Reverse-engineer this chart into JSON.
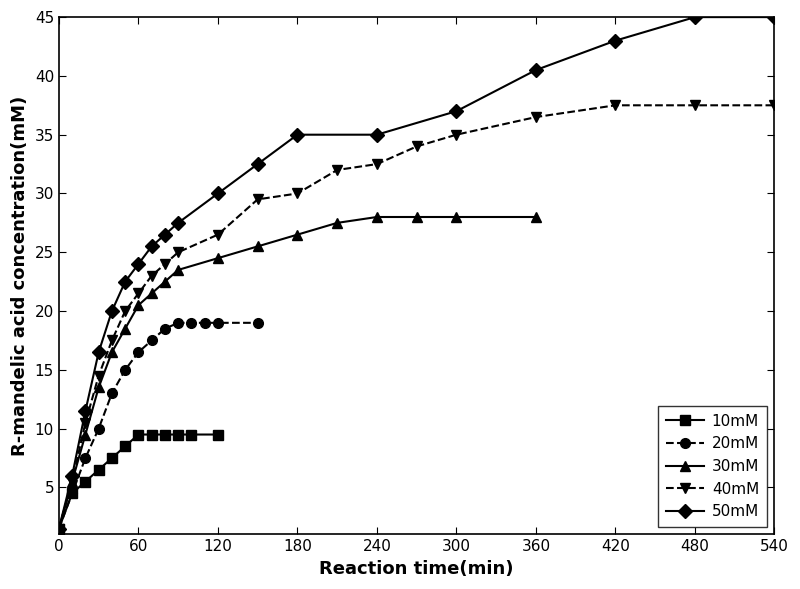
{
  "series": [
    {
      "label": "10mM",
      "marker": "s",
      "linestyle": "-",
      "x": [
        0,
        10,
        20,
        30,
        40,
        50,
        60,
        70,
        80,
        90,
        100,
        120
      ],
      "y": [
        1.5,
        4.5,
        5.5,
        6.5,
        7.5,
        8.5,
        9.5,
        9.5,
        9.5,
        9.5,
        9.5,
        9.5
      ]
    },
    {
      "label": "20mM",
      "marker": "o",
      "linestyle": "--",
      "x": [
        0,
        10,
        20,
        30,
        40,
        50,
        60,
        70,
        80,
        90,
        100,
        110,
        120,
        150
      ],
      "y": [
        1.5,
        4.5,
        7.5,
        10.0,
        13.0,
        15.0,
        16.5,
        17.5,
        18.5,
        19.0,
        19.0,
        19.0,
        19.0,
        19.0
      ]
    },
    {
      "label": "30mM",
      "marker": "^",
      "linestyle": "-",
      "x": [
        0,
        10,
        20,
        30,
        40,
        50,
        60,
        70,
        80,
        90,
        120,
        150,
        180,
        210,
        240,
        270,
        300,
        360
      ],
      "y": [
        1.5,
        5.5,
        9.5,
        13.5,
        16.5,
        18.5,
        20.5,
        21.5,
        22.5,
        23.5,
        24.5,
        25.5,
        26.5,
        27.5,
        28.0,
        28.0,
        28.0,
        28.0
      ]
    },
    {
      "label": "40mM",
      "marker": "v",
      "linestyle": "--",
      "x": [
        0,
        10,
        20,
        30,
        40,
        50,
        60,
        70,
        80,
        90,
        120,
        150,
        180,
        210,
        240,
        270,
        300,
        360,
        420,
        480,
        540
      ],
      "y": [
        1.5,
        5.5,
        10.5,
        14.5,
        17.5,
        20.0,
        21.5,
        23.0,
        24.0,
        25.0,
        26.5,
        29.5,
        30.0,
        32.0,
        32.5,
        34.0,
        35.0,
        36.5,
        37.5,
        37.5,
        37.5
      ]
    },
    {
      "label": "50mM",
      "marker": "D",
      "linestyle": "-",
      "x": [
        0,
        10,
        20,
        30,
        40,
        50,
        60,
        70,
        80,
        90,
        120,
        150,
        180,
        240,
        300,
        360,
        420,
        480,
        540
      ],
      "y": [
        1.5,
        6.0,
        11.5,
        16.5,
        20.0,
        22.5,
        24.0,
        25.5,
        26.5,
        27.5,
        30.0,
        32.5,
        35.0,
        35.0,
        37.0,
        40.5,
        43.0,
        45.0,
        45.0
      ]
    }
  ],
  "xlabel": "Reaction time(min)",
  "ylabel": "R-mandelic acid concentration(mM)",
  "xlim": [
    0,
    540
  ],
  "ylim": [
    1,
    45
  ],
  "xticks": [
    0,
    60,
    120,
    180,
    240,
    300,
    360,
    420,
    480,
    540
  ],
  "yticks": [
    5,
    10,
    15,
    20,
    25,
    30,
    35,
    40,
    45
  ],
  "line_color": "#000000",
  "background_color": "#ffffff",
  "legend_loc": "lower right",
  "axis_fontsize": 13,
  "tick_fontsize": 11,
  "legend_fontsize": 11,
  "marker_size": 7,
  "line_width": 1.5,
  "figsize": [
    8.0,
    5.89
  ],
  "dpi": 100
}
